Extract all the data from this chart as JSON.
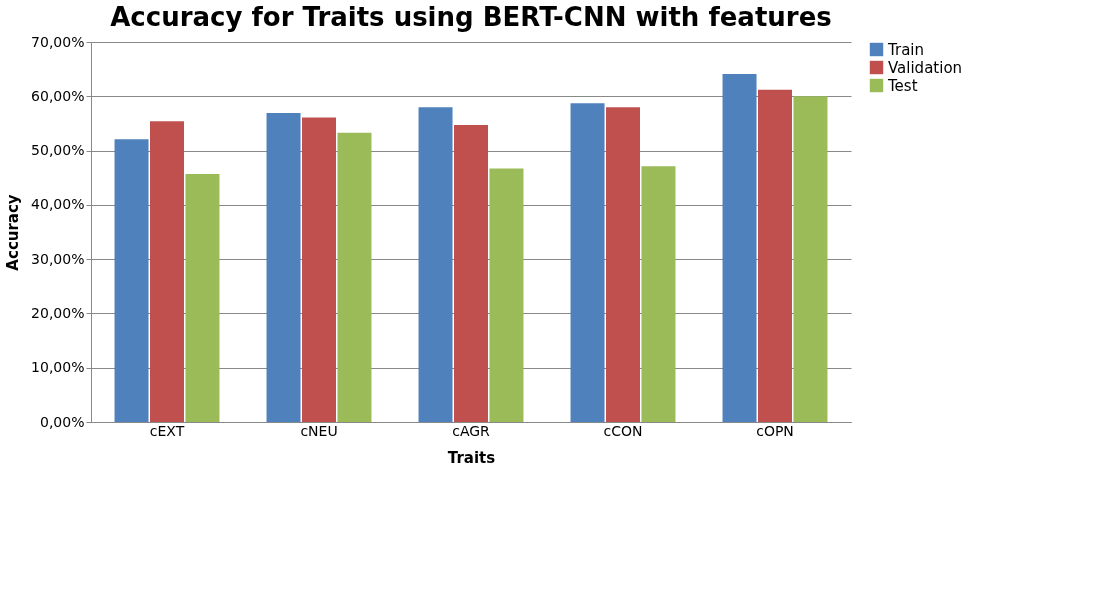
{
  "chart_data": {
    "type": "bar",
    "title": "Accuracy for Traits using BERT-CNN with features",
    "xlabel": "Traits",
    "ylabel": "Accuracy",
    "categories": [
      "cEXT",
      "cNEU",
      "cAGR",
      "cCON",
      "cOPN"
    ],
    "series": [
      {
        "name": "Train",
        "color": "#4f81bd",
        "values": [
          52.1,
          56.9,
          58.0,
          58.7,
          64.1
        ]
      },
      {
        "name": "Validation",
        "color": "#c0504d",
        "values": [
          55.4,
          56.1,
          54.7,
          58.0,
          61.2
        ]
      },
      {
        "name": "Test",
        "color": "#9bbb59",
        "values": [
          45.7,
          53.3,
          46.7,
          47.1,
          60.0
        ]
      }
    ],
    "ylim": [
      0,
      70
    ],
    "yticks": [
      {
        "value": 0,
        "label": "0,00%"
      },
      {
        "value": 10,
        "label": "10,00%"
      },
      {
        "value": 20,
        "label": "20,00%"
      },
      {
        "value": 30,
        "label": "30,00%"
      },
      {
        "value": 40,
        "label": "40,00%"
      },
      {
        "value": 50,
        "label": "50,00%"
      },
      {
        "value": 60,
        "label": "60,00%"
      },
      {
        "value": 70,
        "label": "70,00%"
      }
    ],
    "grid": "y",
    "legend": "right"
  }
}
